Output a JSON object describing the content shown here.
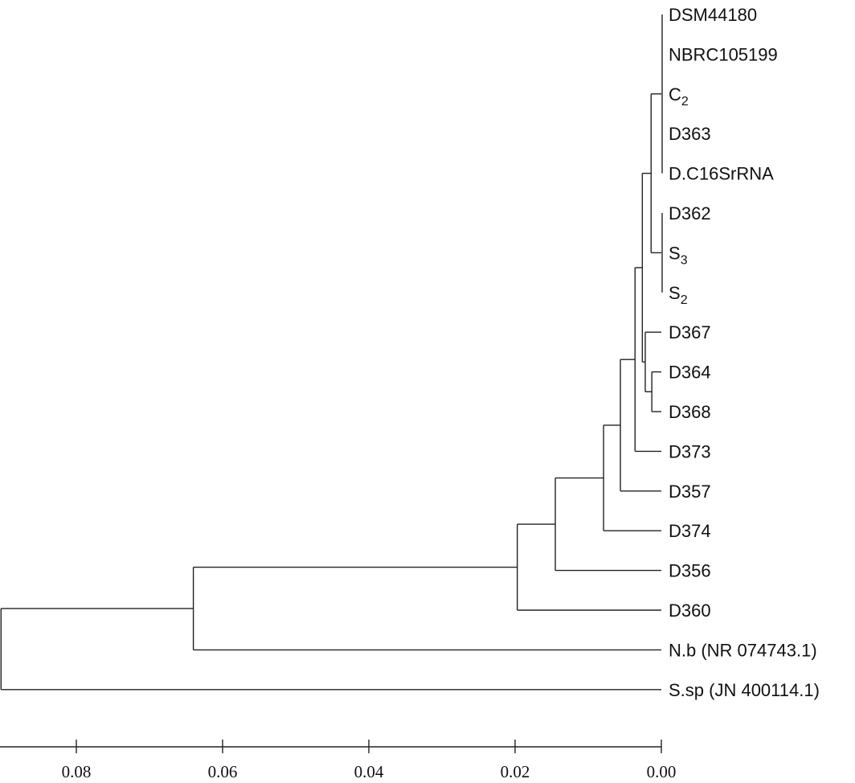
{
  "chart_data": {
    "type": "dendrogram",
    "axis": {
      "ticks": [
        0.08,
        0.06,
        0.04,
        0.02,
        0.0
      ],
      "tick_labels": [
        "0.08",
        "0.06",
        "0.04",
        "0.02",
        "0.00"
      ],
      "range": [
        0.0905,
        0.0
      ]
    },
    "tree": {
      "h": 0.0903,
      "children": [
        {
          "h": 0.064,
          "children": [
            {
              "h": 0.0197,
              "children": [
                {
                  "h": 0.0145,
                  "children": [
                    {
                      "h": 0.0079,
                      "children": [
                        {
                          "h": 0.0056,
                          "children": [
                            {
                              "h": 0.0036,
                              "children": [
                                {
                                  "h": 0.0026,
                                  "children": [
                                    {
                                      "h": 0.0014,
                                      "children": [
                                        {
                                          "h": 0,
                                          "children": [
                                            {
                                              "label": "DSM44180",
                                              "sub": ""
                                            },
                                            {
                                              "label": "NBRC105199",
                                              "sub": ""
                                            },
                                            {
                                              "label": "C",
                                              "sub": "2"
                                            },
                                            {
                                              "label": "D363",
                                              "sub": ""
                                            },
                                            {
                                              "label": "D.C16SrRNA",
                                              "sub": ""
                                            }
                                          ]
                                        },
                                        {
                                          "h": 0,
                                          "children": [
                                            {
                                              "label": "D362",
                                              "sub": ""
                                            },
                                            {
                                              "label": "S",
                                              "sub": "3"
                                            },
                                            {
                                              "label": "S",
                                              "sub": "2"
                                            }
                                          ]
                                        }
                                      ]
                                    },
                                    {
                                      "h": 0.0022,
                                      "children": [
                                        {
                                          "label": "D367",
                                          "sub": ""
                                        },
                                        {
                                          "h": 0.0013,
                                          "children": [
                                            {
                                              "label": "D364",
                                              "sub": ""
                                            },
                                            {
                                              "label": "D368",
                                              "sub": ""
                                            }
                                          ]
                                        }
                                      ]
                                    }
                                  ]
                                },
                                {
                                  "label": "D373",
                                  "sub": ""
                                }
                              ]
                            },
                            {
                              "label": "D357",
                              "sub": ""
                            }
                          ]
                        },
                        {
                          "label": "D374",
                          "sub": ""
                        }
                      ]
                    },
                    {
                      "label": "D356",
                      "sub": ""
                    }
                  ]
                },
                {
                  "label": "D360",
                  "sub": ""
                }
              ]
            },
            {
              "label": "N.b (NR 074743.1)",
              "sub": ""
            }
          ]
        },
        {
          "label": "S.sp (JN 400114.1)",
          "sub": ""
        }
      ]
    }
  }
}
